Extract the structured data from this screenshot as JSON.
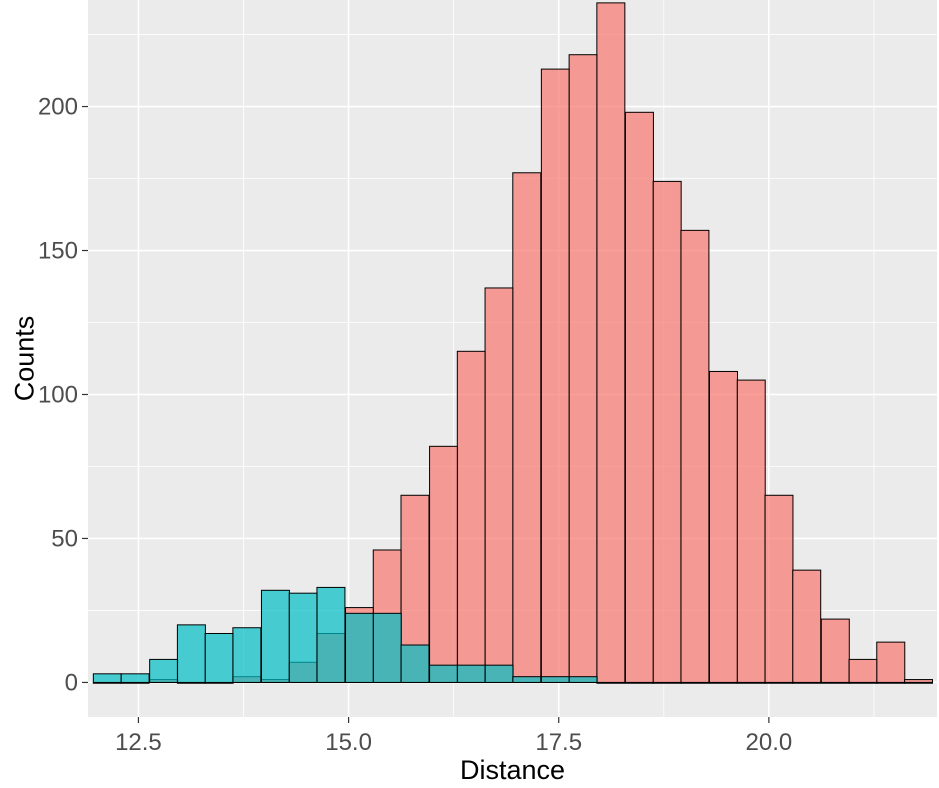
{
  "chart_data": {
    "type": "bar",
    "xlabel": "Distance",
    "ylabel": "Counts",
    "xlim": [
      11.9,
      22.0
    ],
    "ylim": [
      -12,
      237
    ],
    "x_ticks": [
      12.5,
      15.0,
      17.5,
      20.0
    ],
    "x_tick_labels": [
      "12.5",
      "15.0",
      "17.5",
      "20.0"
    ],
    "y_ticks": [
      0,
      50,
      100,
      150,
      200
    ],
    "y_tick_labels": [
      "0",
      "50",
      "100",
      "150",
      "200"
    ],
    "grid": true,
    "legend": "none",
    "bin_width": 0.333,
    "series": [
      {
        "color": "#F8766D",
        "opacity": 0.7,
        "bins": [
          {
            "x": 12.13,
            "count": 0
          },
          {
            "x": 12.46,
            "count": 0
          },
          {
            "x": 12.8,
            "count": 1
          },
          {
            "x": 13.13,
            "count": 0
          },
          {
            "x": 13.46,
            "count": 0
          },
          {
            "x": 13.79,
            "count": 2
          },
          {
            "x": 14.13,
            "count": 1
          },
          {
            "x": 14.46,
            "count": 7
          },
          {
            "x": 14.79,
            "count": 17
          },
          {
            "x": 15.13,
            "count": 26
          },
          {
            "x": 15.46,
            "count": 46
          },
          {
            "x": 15.79,
            "count": 65
          },
          {
            "x": 16.13,
            "count": 82
          },
          {
            "x": 16.46,
            "count": 115
          },
          {
            "x": 16.79,
            "count": 137
          },
          {
            "x": 17.12,
            "count": 177
          },
          {
            "x": 17.46,
            "count": 213
          },
          {
            "x": 17.79,
            "count": 218
          },
          {
            "x": 18.12,
            "count": 236
          },
          {
            "x": 18.46,
            "count": 198
          },
          {
            "x": 18.79,
            "count": 174
          },
          {
            "x": 19.12,
            "count": 157
          },
          {
            "x": 19.46,
            "count": 108
          },
          {
            "x": 19.79,
            "count": 105
          },
          {
            "x": 20.12,
            "count": 65
          },
          {
            "x": 20.45,
            "count": 39
          },
          {
            "x": 20.79,
            "count": 22
          },
          {
            "x": 21.12,
            "count": 8
          },
          {
            "x": 21.45,
            "count": 14
          },
          {
            "x": 21.78,
            "count": 1
          }
        ]
      },
      {
        "color": "#00BFC4",
        "opacity": 0.7,
        "bins": [
          {
            "x": 12.13,
            "count": 3
          },
          {
            "x": 12.46,
            "count": 3
          },
          {
            "x": 12.8,
            "count": 8
          },
          {
            "x": 13.13,
            "count": 20
          },
          {
            "x": 13.46,
            "count": 17
          },
          {
            "x": 13.79,
            "count": 19
          },
          {
            "x": 14.13,
            "count": 32
          },
          {
            "x": 14.46,
            "count": 31
          },
          {
            "x": 14.79,
            "count": 33
          },
          {
            "x": 15.13,
            "count": 24
          },
          {
            "x": 15.46,
            "count": 24
          },
          {
            "x": 15.79,
            "count": 13
          },
          {
            "x": 16.13,
            "count": 6
          },
          {
            "x": 16.46,
            "count": 6
          },
          {
            "x": 16.79,
            "count": 6
          },
          {
            "x": 17.12,
            "count": 2
          },
          {
            "x": 17.46,
            "count": 2
          },
          {
            "x": 17.79,
            "count": 2
          },
          {
            "x": 18.12,
            "count": 0
          },
          {
            "x": 18.46,
            "count": 0
          },
          {
            "x": 18.79,
            "count": 0
          },
          {
            "x": 19.12,
            "count": 0
          },
          {
            "x": 19.46,
            "count": 0
          },
          {
            "x": 19.79,
            "count": 0
          },
          {
            "x": 20.12,
            "count": 0
          },
          {
            "x": 20.45,
            "count": 0
          },
          {
            "x": 20.79,
            "count": 0
          },
          {
            "x": 21.12,
            "count": 0
          },
          {
            "x": 21.45,
            "count": 0
          },
          {
            "x": 21.78,
            "count": 0
          }
        ]
      }
    ]
  }
}
